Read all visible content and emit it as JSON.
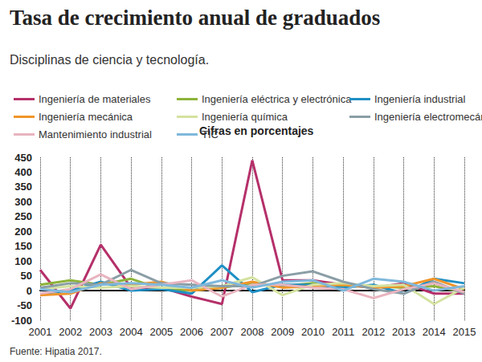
{
  "chart_data": {
    "type": "line",
    "title": "Tasa de crecimiento anual de graduados",
    "subtitle": "Disciplinas de ciencia y tecnología.",
    "annotations": [
      "Cifras en porcentajes"
    ],
    "source": "Fuente: Hipatia 2017.",
    "categories": [
      "2001",
      "2002",
      "2003",
      "2004",
      "2005",
      "2006",
      "2007",
      "2008",
      "2009",
      "2010",
      "2011",
      "2012",
      "2013",
      "2014",
      "2015"
    ],
    "ylim": [
      -100,
      450
    ],
    "yticks": [
      -100,
      -50,
      0,
      50,
      100,
      150,
      200,
      250,
      300,
      350,
      400,
      450
    ],
    "grid": true,
    "legend": "top",
    "series": [
      {
        "name": "Ingeniería de materiales",
        "color": "#b5306a",
        "values": [
          70,
          -60,
          155,
          10,
          10,
          -20,
          -45,
          440,
          35,
          35,
          20,
          10,
          25,
          -10,
          -10
        ]
      },
      {
        "name": "Ingeniería eléctrica y electrónica",
        "color": "#8db33a",
        "values": [
          20,
          35,
          20,
          40,
          5,
          0,
          10,
          25,
          15,
          25,
          15,
          15,
          10,
          15,
          -5
        ]
      },
      {
        "name": "Ingeniería industrial",
        "color": "#1f8fc4",
        "values": [
          -10,
          0,
          30,
          0,
          5,
          -10,
          85,
          -5,
          20,
          20,
          10,
          20,
          -10,
          40,
          25
        ]
      },
      {
        "name": "Ingeniería mecánica",
        "color": "#f0952a",
        "values": [
          -15,
          -10,
          25,
          20,
          30,
          0,
          10,
          30,
          10,
          15,
          20,
          10,
          15,
          40,
          5
        ]
      },
      {
        "name": "Ingeniería química",
        "color": "#d4e2a0",
        "values": [
          5,
          15,
          10,
          15,
          10,
          10,
          15,
          45,
          -15,
          20,
          25,
          15,
          20,
          -45,
          10
        ]
      },
      {
        "name": "Ingeniería electromecánica",
        "color": "#8a9ea6",
        "values": [
          10,
          25,
          20,
          70,
          25,
          20,
          15,
          15,
          50,
          65,
          30,
          5,
          -10,
          30,
          -10
        ]
      },
      {
        "name": "Mantenimiento industrial",
        "color": "#e8b4bf",
        "values": [
          -10,
          5,
          55,
          5,
          20,
          35,
          -20,
          20,
          20,
          10,
          5,
          -25,
          5,
          25,
          -5
        ]
      },
      {
        "name": "TIC",
        "color": "#7fb8dc",
        "values": [
          5,
          -5,
          20,
          25,
          20,
          10,
          35,
          10,
          30,
          35,
          0,
          40,
          30,
          0,
          15
        ]
      }
    ]
  }
}
